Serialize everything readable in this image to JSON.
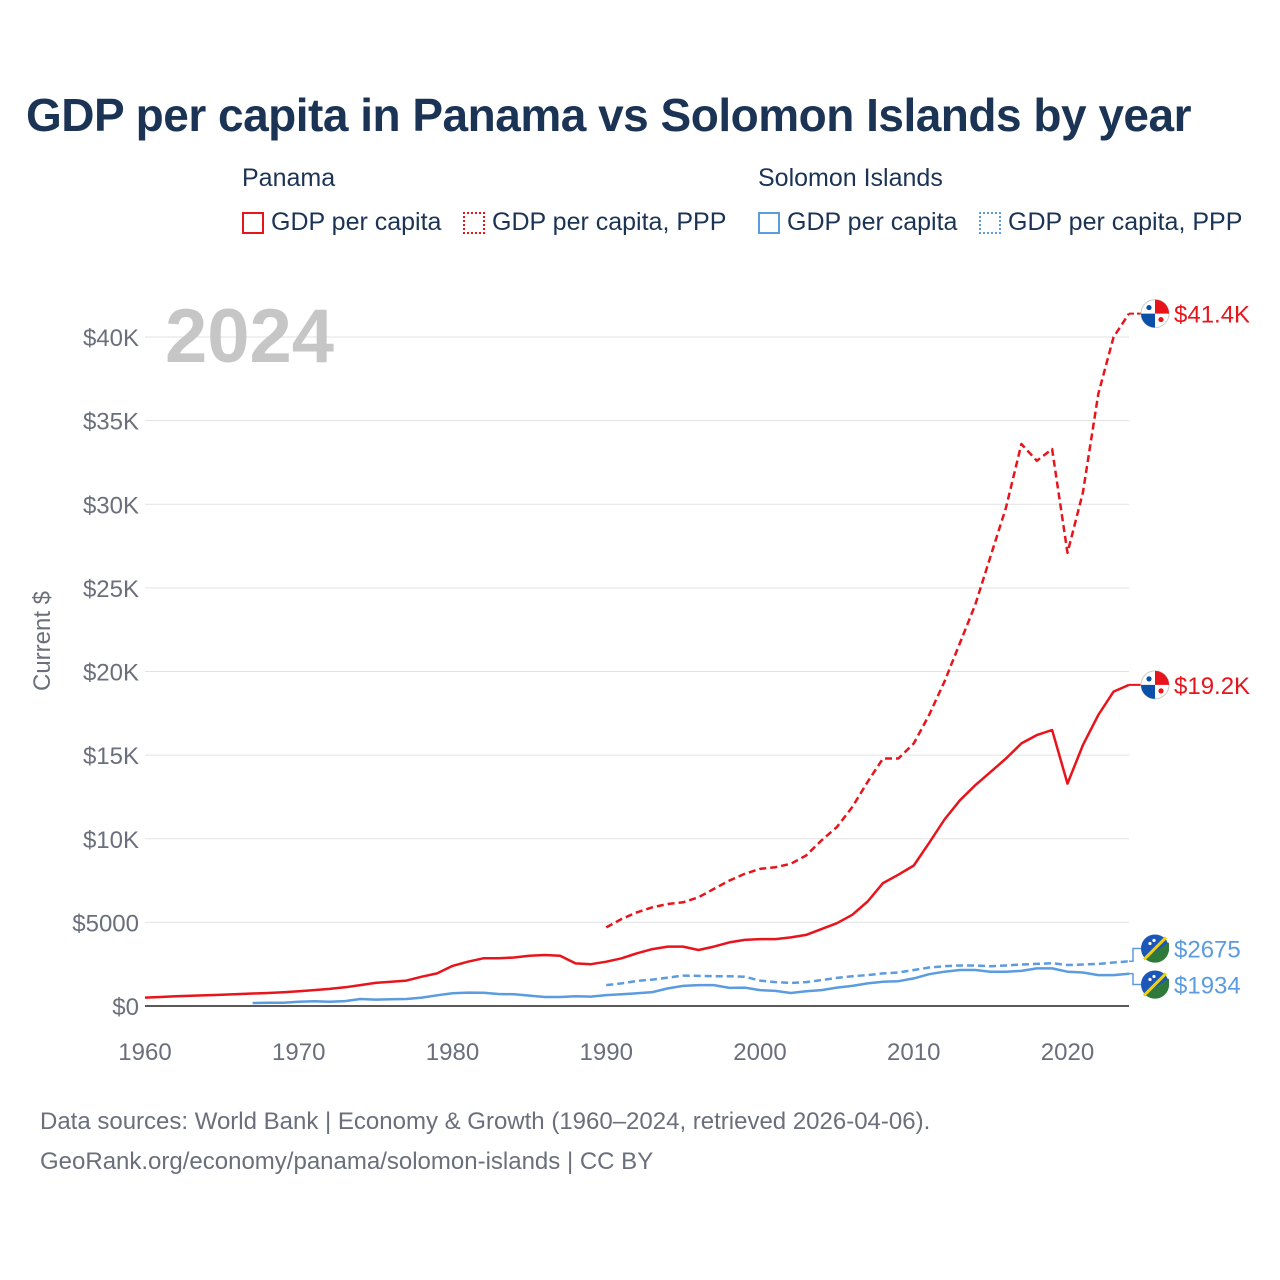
{
  "title": "GDP per capita in Panama vs Solomon Islands by year",
  "legend": {
    "panama": {
      "heading": "Panama",
      "gdp": "GDP per capita",
      "ppp": "GDP per capita, PPP"
    },
    "solomon": {
      "heading": "Solomon Islands",
      "gdp": "GDP per capita",
      "ppp": "GDP per capita, PPP"
    }
  },
  "colors": {
    "panama": "#e8141b",
    "solomon": "#5b9be0",
    "title": "#1b3354",
    "grid": "#e2e2e2",
    "year": "#c6c6c6"
  },
  "source": {
    "line1": "Data sources: World Bank | Economy & Growth (1960–2024, retrieved 2026-04-06).",
    "line2": "GeoRank.org/economy/panama/solomon-islands | CC BY"
  },
  "chart_data": {
    "type": "line",
    "title": "GDP per capita in Panama vs Solomon Islands by year",
    "ylabel": "Current $",
    "xlabel": "",
    "year_label": "2024",
    "xlim": [
      1960,
      2024
    ],
    "ylim": [
      0,
      43000
    ],
    "x_ticks": [
      1960,
      1970,
      1980,
      1990,
      2000,
      2010,
      2020
    ],
    "y_ticks": [
      {
        "value": 0,
        "label": "$0"
      },
      {
        "value": 5000,
        "label": "$5000"
      },
      {
        "value": 10000,
        "label": "$10K"
      },
      {
        "value": 15000,
        "label": "$15K"
      },
      {
        "value": 20000,
        "label": "$20K"
      },
      {
        "value": 25000,
        "label": "$25K"
      },
      {
        "value": 30000,
        "label": "$30K"
      },
      {
        "value": 35000,
        "label": "$35K"
      },
      {
        "value": 40000,
        "label": "$40K"
      }
    ],
    "series": [
      {
        "name": "Panama GDP per capita, PPP",
        "country": "panama",
        "style": "dashed",
        "end_label": "$41.4K",
        "x": [
          1990,
          1991,
          1992,
          1993,
          1994,
          1995,
          1996,
          1997,
          1998,
          1999,
          2000,
          2001,
          2002,
          2003,
          2004,
          2005,
          2006,
          2007,
          2008,
          2009,
          2010,
          2011,
          2012,
          2013,
          2014,
          2015,
          2016,
          2017,
          2018,
          2019,
          2020,
          2021,
          2022,
          2023,
          2024
        ],
        "values": [
          4700,
          5200,
          5600,
          5900,
          6100,
          6200,
          6500,
          7000,
          7500,
          7900,
          8200,
          8300,
          8500,
          9000,
          9900,
          10700,
          11900,
          13400,
          14800,
          14800,
          15700,
          17400,
          19400,
          21700,
          24000,
          26900,
          29800,
          33600,
          32600,
          33300,
          27100,
          30700,
          36600,
          40000,
          41400
        ]
      },
      {
        "name": "Panama GDP per capita",
        "country": "panama",
        "style": "solid",
        "end_label": "$19.2K",
        "x": [
          1960,
          1961,
          1962,
          1963,
          1964,
          1965,
          1966,
          1967,
          1968,
          1969,
          1970,
          1971,
          1972,
          1973,
          1974,
          1975,
          1976,
          1977,
          1978,
          1979,
          1980,
          1981,
          1982,
          1983,
          1984,
          1985,
          1986,
          1987,
          1988,
          1989,
          1990,
          1991,
          1992,
          1993,
          1994,
          1995,
          1996,
          1997,
          1998,
          1999,
          2000,
          2001,
          2002,
          2003,
          2004,
          2005,
          2006,
          2007,
          2008,
          2009,
          2010,
          2011,
          2012,
          2013,
          2014,
          2015,
          2016,
          2017,
          2018,
          2019,
          2020,
          2021,
          2022,
          2023,
          2024
        ],
        "values": [
          500,
          540,
          580,
          610,
          640,
          670,
          710,
          750,
          780,
          820,
          880,
          950,
          1020,
          1120,
          1250,
          1380,
          1450,
          1520,
          1750,
          1950,
          2400,
          2650,
          2850,
          2850,
          2900,
          3000,
          3050,
          3000,
          2550,
          2500,
          2650,
          2850,
          3150,
          3400,
          3550,
          3550,
          3350,
          3550,
          3800,
          3950,
          4000,
          4000,
          4100,
          4250,
          4600,
          4950,
          5450,
          6250,
          7350,
          7850,
          8400,
          9750,
          11150,
          12300,
          13200,
          14000,
          14800,
          15700,
          16200,
          16500,
          13300,
          15600,
          17400,
          18800,
          19200
        ]
      },
      {
        "name": "Solomon Islands GDP per capita, PPP",
        "country": "solomon",
        "style": "dashed",
        "end_label": "$2675",
        "x": [
          1990,
          1991,
          1992,
          1993,
          1994,
          1995,
          1996,
          1997,
          1998,
          1999,
          2000,
          2001,
          2002,
          2003,
          2004,
          2005,
          2006,
          2007,
          2008,
          2009,
          2010,
          2011,
          2012,
          2013,
          2014,
          2015,
          2016,
          2017,
          2018,
          2019,
          2020,
          2021,
          2022,
          2023,
          2024
        ],
        "values": [
          1250,
          1350,
          1500,
          1580,
          1700,
          1820,
          1800,
          1780,
          1780,
          1750,
          1520,
          1430,
          1380,
          1430,
          1550,
          1680,
          1780,
          1850,
          1950,
          2000,
          2150,
          2300,
          2380,
          2420,
          2420,
          2380,
          2420,
          2480,
          2520,
          2560,
          2450,
          2480,
          2520,
          2600,
          2675
        ]
      },
      {
        "name": "Solomon Islands GDP per capita",
        "country": "solomon",
        "style": "solid",
        "end_label": "$1934",
        "x": [
          1967,
          1968,
          1969,
          1970,
          1971,
          1972,
          1973,
          1974,
          1975,
          1976,
          1977,
          1978,
          1979,
          1980,
          1981,
          1982,
          1983,
          1984,
          1985,
          1986,
          1987,
          1988,
          1989,
          1990,
          1991,
          1992,
          1993,
          1994,
          1995,
          1996,
          1997,
          1998,
          1999,
          2000,
          2001,
          2002,
          2003,
          2004,
          2005,
          2006,
          2007,
          2008,
          2009,
          2010,
          2011,
          2012,
          2013,
          2014,
          2015,
          2016,
          2017,
          2018,
          2019,
          2020,
          2021,
          2022,
          2023,
          2024
        ],
        "values": [
          180,
          190,
          200,
          250,
          280,
          250,
          290,
          420,
          380,
          400,
          420,
          500,
          640,
          760,
          800,
          790,
          720,
          700,
          620,
          540,
          540,
          580,
          560,
          650,
          700,
          760,
          830,
          1050,
          1200,
          1250,
          1250,
          1080,
          1100,
          950,
          900,
          780,
          880,
          950,
          1100,
          1200,
          1350,
          1450,
          1480,
          1650,
          1900,
          2050,
          2150,
          2150,
          2050,
          2050,
          2100,
          2250,
          2250,
          2050,
          2000,
          1850,
          1850,
          1934
        ]
      }
    ]
  }
}
